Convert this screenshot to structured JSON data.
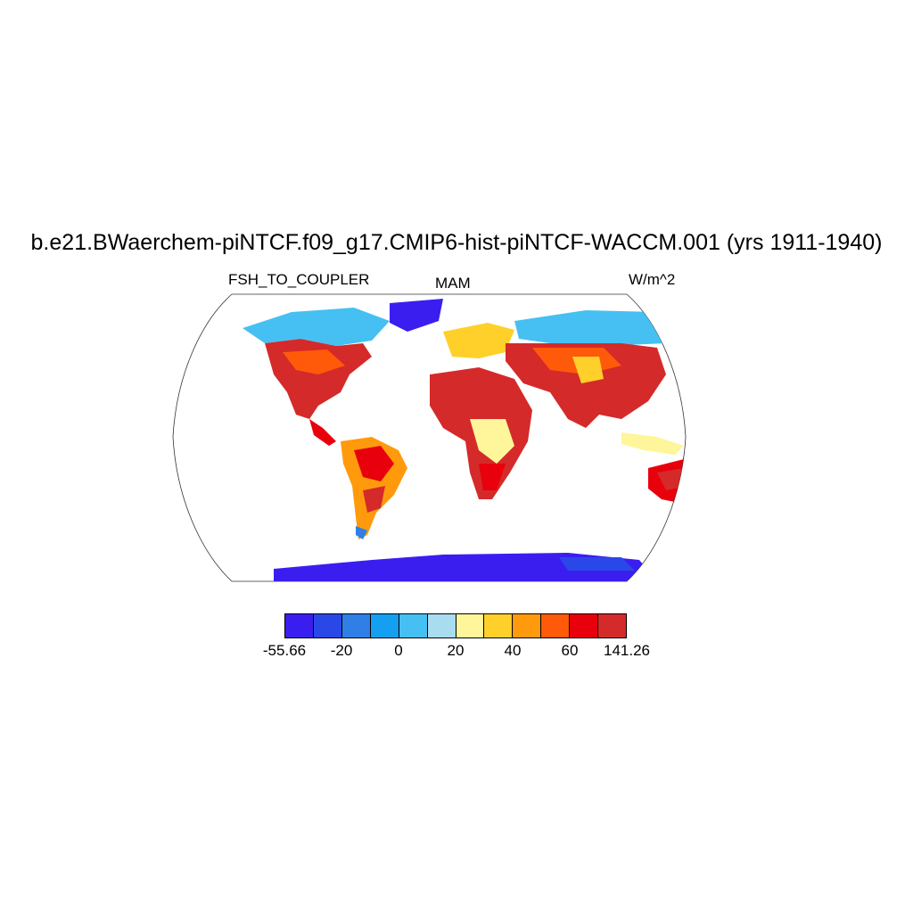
{
  "title": "b.e21.BWaerchem-piNTCF.f09_g17.CMIP6-hist-piNTCF-WACCM.001 (yrs 1911-1940)",
  "variable": "FSH_TO_COUPLER",
  "season": "MAM",
  "units": "W/m^2",
  "colorbar": {
    "colors": [
      "#3a1ef0",
      "#2a48e8",
      "#2f7fe6",
      "#159ff0",
      "#46c0f2",
      "#a9dcef",
      "#fff59a",
      "#ffd02a",
      "#ff9a0c",
      "#ff5a0a",
      "#e8000c",
      "#d42a2a"
    ],
    "tick_labels": [
      "-55.66",
      "-20",
      "0",
      "20",
      "40",
      "60",
      "141.26"
    ]
  },
  "map": {
    "projection": "Robinson",
    "land_colors": {
      "ice": "#3a1ef0",
      "cold": "#2f7fe6",
      "cool": "#46c0f2",
      "mild": "#fff59a",
      "warm": "#ffd02a",
      "hot": "#ff5a0a",
      "hottest": "#d42a2a",
      "red": "#e8000c"
    }
  }
}
